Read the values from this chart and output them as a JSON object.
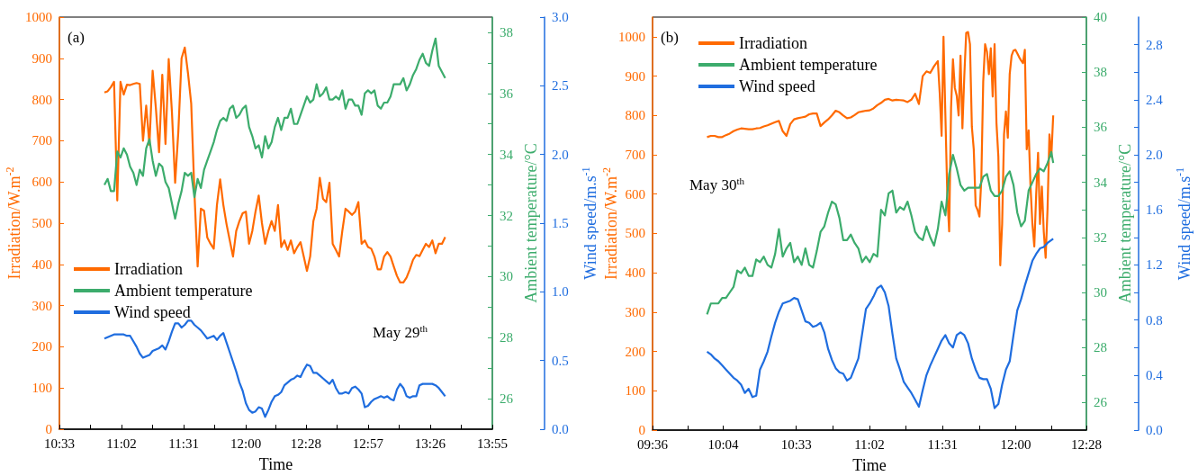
{
  "chart_data": [
    {
      "type": "line",
      "xlabel": "Time",
      "ylabel": "Irradiation/W.m$^{-2}$",
      "y2label": "Ambient temperature/°C",
      "y3label": "Wind speed/m.s$^{-1}$",
      "legend": "left",
      "marker": "none",
      "line_style": "solid",
      "annotations": [
        "(a)",
        "May 29$^{th}$"
      ],
      "xlim": [
        10.55,
        13.9167
      ],
      "xticks": [
        {
          "value": 10.55,
          "label": "10:33"
        },
        {
          "value": 10.7917,
          "label": null
        },
        {
          "value": 11.0333,
          "label": "11:02"
        },
        {
          "value": 11.275,
          "label": null
        },
        {
          "value": 11.5167,
          "label": "11:31"
        },
        {
          "value": 11.7583,
          "label": null
        },
        {
          "value": 12,
          "label": "12:00"
        },
        {
          "value": 12.2333,
          "label": null
        },
        {
          "value": 12.4667,
          "label": "12:28"
        },
        {
          "value": 12.7083,
          "label": null
        },
        {
          "value": 12.95,
          "label": "12:57"
        },
        {
          "value": 13.1917,
          "label": null
        },
        {
          "value": 13.4333,
          "label": "13:26"
        },
        {
          "value": 13.675,
          "label": null
        },
        {
          "value": 13.9167,
          "label": "13:55"
        }
      ],
      "ylim": [
        0,
        1000
      ],
      "yticks": [
        0,
        100,
        200,
        300,
        400,
        500,
        600,
        700,
        800,
        900,
        1000
      ],
      "y2lim": [
        25,
        38.5
      ],
      "y2ticks": [
        26,
        {
          "value": 27,
          "label": null
        },
        28,
        {
          "value": 29,
          "label": null
        },
        30,
        {
          "value": 31,
          "label": null
        },
        32,
        {
          "value": 33,
          "label": null
        },
        34,
        {
          "value": 35,
          "label": null
        },
        36,
        {
          "value": 37,
          "label": null
        },
        38
      ],
      "y3lim": [
        0,
        3
      ],
      "y3ticks": [
        {
          "value": 0,
          "label": "0.0"
        },
        0.5,
        {
          "value": 1,
          "label": "1.0"
        },
        1.5,
        {
          "value": 2,
          "label": "2.0"
        },
        2.5,
        {
          "value": 3,
          "label": "3.0"
        }
      ],
      "x": [
        10.9,
        10.925,
        10.95,
        10.975,
        11,
        11.025,
        11.05,
        11.075,
        11.1,
        11.125,
        11.15,
        11.175,
        11.2,
        11.225,
        11.25,
        11.275,
        11.3,
        11.325,
        11.35,
        11.375,
        11.4,
        11.425,
        11.45,
        11.475,
        11.5,
        11.525,
        11.55,
        11.575,
        11.6,
        11.625,
        11.65,
        11.675,
        11.7,
        11.725,
        11.75,
        11.775,
        11.8,
        11.825,
        11.85,
        11.875,
        11.9,
        11.925,
        11.95,
        11.975,
        12,
        12.025,
        12.05,
        12.075,
        12.1,
        12.125,
        12.15,
        12.175,
        12.2,
        12.225,
        12.25,
        12.275,
        12.3,
        12.325,
        12.35,
        12.375,
        12.4,
        12.425,
        12.45,
        12.475,
        12.5,
        12.525,
        12.55,
        12.575,
        12.6,
        12.625,
        12.65,
        12.675,
        12.7,
        12.725,
        12.75,
        12.775,
        12.8,
        12.825,
        12.85,
        12.875,
        12.9,
        12.925,
        12.95,
        12.975,
        13,
        13.025,
        13.05,
        13.075,
        13.1,
        13.125,
        13.15,
        13.175,
        13.2,
        13.225,
        13.25,
        13.275,
        13.3,
        13.325,
        13.35,
        13.375,
        13.4,
        13.425,
        13.45,
        13.475,
        13.5,
        13.525,
        13.55
      ],
      "series": [
        {
          "name": "Irradiation",
          "color": "#ff6a00",
          "values": [
            817,
            820,
            830,
            843,
            555,
            843,
            812,
            836,
            835,
            838,
            840,
            838,
            700,
            785,
            690,
            870,
            780,
            672,
            860,
            692,
            898,
            770,
            598,
            723,
            900,
            926,
            864,
            790,
            574,
            395,
            535,
            530,
            465,
            450,
            438,
            544,
            606,
            544,
            497,
            458,
            419,
            481,
            505,
            524,
            528,
            450,
            481,
            528,
            567,
            500,
            450,
            481,
            505,
            481,
            544,
            442,
            458,
            435,
            458,
            427,
            442,
            454,
            419,
            384,
            419,
            505,
            535,
            610,
            559,
            551,
            598,
            450,
            435,
            419,
            481,
            535,
            528,
            520,
            528,
            551,
            450,
            458,
            442,
            438,
            419,
            388,
            388,
            419,
            430,
            419,
            395,
            372,
            356,
            356,
            368,
            388,
            411,
            423,
            420,
            435,
            450,
            442,
            458,
            427,
            450,
            450,
            466
          ]
        },
        {
          "name": "Ambient temperature",
          "color": "#3cac6c",
          "axis": "y2",
          "values": [
            33.0,
            33.2,
            32.8,
            32.8,
            34.1,
            33.9,
            34.2,
            34.0,
            33.6,
            33.4,
            33.0,
            33.5,
            33.3,
            34.2,
            34.5,
            33.8,
            33.3,
            33.7,
            33.6,
            33.1,
            32.9,
            32.4,
            31.9,
            32.4,
            32.8,
            33.4,
            33.3,
            33.4,
            32.6,
            33.2,
            32.9,
            33.5,
            33.8,
            34.1,
            34.4,
            34.8,
            35.1,
            35.2,
            35.1,
            35.5,
            35.6,
            35.2,
            35.3,
            35.5,
            35.6,
            34.9,
            34.6,
            34.2,
            34.3,
            33.9,
            34.6,
            34.2,
            34.4,
            34.9,
            35.2,
            34.8,
            35.2,
            35.2,
            35.5,
            35.0,
            35.0,
            35.3,
            35.6,
            35.9,
            35.7,
            35.8,
            36.3,
            35.9,
            36.0,
            36.2,
            35.8,
            35.8,
            35.9,
            35.8,
            36.1,
            35.5,
            35.8,
            35.8,
            35.6,
            35.6,
            35.3,
            36.0,
            36.1,
            36.0,
            36.1,
            35.6,
            35.5,
            35.7,
            35.7,
            35.9,
            36.3,
            36.3,
            36.3,
            36.5,
            36.1,
            36.3,
            36.6,
            36.8,
            37.1,
            37.3,
            37.0,
            36.9,
            37.4,
            37.8,
            36.9,
            36.7,
            36.5
          ]
        },
        {
          "name": "Wind speed",
          "color": "#1f6ddf",
          "axis": "y3",
          "values": [
            0.66,
            0.67,
            0.68,
            0.69,
            0.69,
            0.69,
            0.69,
            0.68,
            0.68,
            0.64,
            0.6,
            0.55,
            0.52,
            0.53,
            0.54,
            0.57,
            0.58,
            0.59,
            0.61,
            0.58,
            0.64,
            0.71,
            0.77,
            0.77,
            0.74,
            0.76,
            0.79,
            0.79,
            0.76,
            0.74,
            0.72,
            0.69,
            0.66,
            0.67,
            0.68,
            0.65,
            0.68,
            0.7,
            0.63,
            0.56,
            0.49,
            0.42,
            0.34,
            0.28,
            0.19,
            0.14,
            0.12,
            0.13,
            0.16,
            0.15,
            0.09,
            0.14,
            0.2,
            0.24,
            0.25,
            0.27,
            0.32,
            0.34,
            0.36,
            0.37,
            0.39,
            0.38,
            0.43,
            0.47,
            0.46,
            0.41,
            0.41,
            0.39,
            0.37,
            0.35,
            0.33,
            0.36,
            0.3,
            0.26,
            0.26,
            0.27,
            0.26,
            0.3,
            0.31,
            0.29,
            0.26,
            0.16,
            0.17,
            0.2,
            0.22,
            0.23,
            0.24,
            0.23,
            0.24,
            0.22,
            0.21,
            0.29,
            0.33,
            0.3,
            0.24,
            0.23,
            0.24,
            0.24,
            0.32,
            0.33,
            0.33,
            0.33,
            0.33,
            0.32,
            0.3,
            0.27,
            0.24
          ]
        }
      ]
    },
    {
      "type": "line",
      "xlabel": "Time",
      "ylabel": "Irradiation/W.m$^{-2}$",
      "y2label": "Ambient temperature/°C",
      "y3label": "Wind speed/m.s$^{-1}$",
      "legend": "top left",
      "marker": "none",
      "line_style": "solid",
      "annotations": [
        "(b)",
        "May 30$^{th}$"
      ],
      "xlim": [
        9.6,
        12.4667
      ],
      "xticks": [
        {
          "value": 9.6,
          "label": "09:36"
        },
        {
          "value": 9.8333,
          "label": null
        },
        {
          "value": 10.0667,
          "label": "10:04"
        },
        {
          "value": 10.3083,
          "label": null
        },
        {
          "value": 10.55,
          "label": "10:33"
        },
        {
          "value": 10.7917,
          "label": null
        },
        {
          "value": 11.0333,
          "label": "11:02"
        },
        {
          "value": 11.275,
          "label": null
        },
        {
          "value": 11.5167,
          "label": "11:31"
        },
        {
          "value": 11.7583,
          "label": null
        },
        {
          "value": 12,
          "label": "12:00"
        },
        {
          "value": 12.2333,
          "label": null
        },
        {
          "value": 12.4667,
          "label": "12:28"
        }
      ],
      "ylim": [
        0,
        1050
      ],
      "yticks": [
        0,
        100,
        200,
        300,
        400,
        500,
        600,
        700,
        800,
        900,
        1000
      ],
      "y2lim": [
        25,
        40
      ],
      "y2ticks": [
        26,
        {
          "value": 27,
          "label": null
        },
        28,
        {
          "value": 29,
          "label": null
        },
        30,
        {
          "value": 31,
          "label": null
        },
        32,
        {
          "value": 33,
          "label": null
        },
        34,
        {
          "value": 35,
          "label": null
        },
        36,
        {
          "value": 37,
          "label": null
        },
        38,
        {
          "value": 39,
          "label": null
        },
        40
      ],
      "y3lim": [
        0,
        3
      ],
      "y3ticks": [
        {
          "value": 0,
          "label": "0.0"
        },
        {
          "value": 0.2,
          "label": null
        },
        0.4,
        {
          "value": 0.6,
          "label": null
        },
        0.8,
        {
          "value": 1,
          "label": null
        },
        1.2,
        {
          "value": 1.4,
          "label": null
        },
        1.6,
        {
          "value": 1.8,
          "label": null
        },
        {
          "value": 2,
          "label": "2.0"
        },
        {
          "value": 2.2,
          "label": null
        },
        2.4,
        {
          "value": 2.6,
          "label": null
        },
        2.8
      ],
      "x": [
        9.96,
        9.985,
        10.01,
        10.035,
        10.06,
        10.085,
        10.11,
        10.135,
        10.16,
        10.185,
        10.21,
        10.235,
        10.26,
        10.285,
        10.31,
        10.335,
        10.36,
        10.385,
        10.41,
        10.435,
        10.46,
        10.485,
        10.51,
        10.535,
        10.56,
        10.585,
        10.61,
        10.635,
        10.66,
        10.685,
        10.71,
        10.735,
        10.76,
        10.785,
        10.81,
        10.835,
        10.86,
        10.885,
        10.91,
        10.935,
        10.96,
        10.985,
        11.01,
        11.035,
        11.06,
        11.085,
        11.11,
        11.135,
        11.16,
        11.185,
        11.21,
        11.235,
        11.26,
        11.285,
        11.31,
        11.335,
        11.36,
        11.385,
        11.41,
        11.435,
        11.46,
        11.485,
        11.51,
        11.535,
        11.56,
        11.585,
        11.61,
        11.635,
        11.66,
        11.685,
        11.71,
        11.735,
        11.76,
        11.785,
        11.81,
        11.835,
        11.86,
        11.885,
        11.91,
        11.935,
        11.96,
        11.985,
        12.01,
        12.035,
        12.06,
        12.085,
        12.11,
        12.135,
        12.16,
        12.185,
        12.21,
        12.235,
        12.2475
      ],
      "series": [
        {
          "name": "Irradiation",
          "color": "#ff6a00",
          "x": [
            9.96,
            9.985,
            10.01,
            10.035,
            10.06,
            10.085,
            10.11,
            10.135,
            10.16,
            10.185,
            10.21,
            10.235,
            10.26,
            10.285,
            10.31,
            10.335,
            10.36,
            10.385,
            10.41,
            10.435,
            10.46,
            10.485,
            10.51,
            10.535,
            10.56,
            10.585,
            10.61,
            10.635,
            10.66,
            10.685,
            10.71,
            10.735,
            10.76,
            10.785,
            10.81,
            10.835,
            10.86,
            10.885,
            10.91,
            10.935,
            10.96,
            10.985,
            11.01,
            11.035,
            11.06,
            11.085,
            11.11,
            11.135,
            11.16,
            11.185,
            11.21,
            11.235,
            11.26,
            11.285,
            11.31,
            11.335,
            11.36,
            11.385,
            11.41,
            11.435,
            11.46,
            11.485,
            11.4975,
            11.51,
            11.5225,
            11.535,
            11.5475,
            11.56,
            11.5725,
            11.585,
            11.5975,
            11.61,
            11.6225,
            11.635,
            11.6475,
            11.66,
            11.6725,
            11.685,
            11.6975,
            11.71,
            11.7225,
            11.735,
            11.7475,
            11.76,
            11.7725,
            11.785,
            11.7975,
            11.81,
            11.8225,
            11.835,
            11.8475,
            11.86,
            11.8725,
            11.885,
            11.8975,
            11.91,
            11.9225,
            11.935,
            11.9475,
            11.96,
            11.9725,
            11.985,
            11.9975,
            12.01,
            12.0225,
            12.035,
            12.0475,
            12.06,
            12.0725,
            12.085,
            12.0975,
            12.11,
            12.1225,
            12.135,
            12.1475,
            12.16,
            12.1725,
            12.185,
            12.1975,
            12.21,
            12.2225,
            12.235,
            12.2475
          ],
          "values": [
            745,
            748,
            748,
            745,
            745,
            750,
            754,
            760,
            764,
            767,
            766,
            765,
            765,
            767,
            768,
            772,
            775,
            779,
            783,
            786,
            760,
            748,
            778,
            790,
            793,
            795,
            797,
            803,
            805,
            805,
            773,
            782,
            790,
            800,
            812,
            808,
            800,
            793,
            795,
            801,
            808,
            810,
            812,
            813,
            818,
            826,
            832,
            840,
            842,
            838,
            840,
            839,
            838,
            834,
            840,
            855,
            829,
            900,
            912,
            908,
            925,
            938,
            857,
            748,
            1000,
            800,
            600,
            505,
            820,
            943,
            870,
            850,
            800,
            952,
            767,
            900,
            1010,
            1012,
            981,
            771,
            714,
            571,
            560,
            543,
            638,
            886,
            981,
            962,
            905,
            971,
            848,
            981,
            781,
            695,
            419,
            524,
            752,
            810,
            743,
            905,
            952,
            965,
            967,
            958,
            948,
            940,
            933,
            967,
            714,
            762,
            619,
            524,
            467,
            600,
            705,
            524,
            619,
            505,
            438,
            562,
            752,
            695,
            800
          ]
        },
        {
          "name": "Ambient temperature",
          "color": "#3cac6c",
          "axis": "y2",
          "values": [
            29.2,
            29.6,
            29.6,
            29.6,
            29.8,
            29.8,
            30.0,
            30.2,
            30.8,
            30.7,
            30.9,
            30.6,
            30.6,
            31.2,
            31.1,
            31.3,
            31.0,
            30.9,
            31.4,
            32.3,
            31.3,
            31.6,
            31.8,
            31.1,
            31.3,
            31.0,
            31.6,
            31.0,
            30.9,
            31.5,
            32.2,
            32.4,
            32.9,
            33.3,
            33.2,
            32.7,
            31.9,
            31.9,
            32.1,
            31.8,
            31.6,
            31.1,
            31.3,
            31.1,
            31.4,
            31.3,
            33.0,
            32.8,
            33.6,
            33.7,
            32.9,
            33.1,
            33.0,
            33.3,
            32.8,
            32.2,
            32.0,
            31.9,
            32.4,
            32.0,
            31.7,
            32.3,
            33.3,
            32.8,
            34.3,
            35.0,
            34.5,
            33.9,
            33.7,
            33.8,
            33.8,
            33.8,
            33.8,
            34.2,
            34.3,
            33.7,
            33.5,
            33.5,
            33.7,
            34.2,
            34.4,
            33.9,
            32.9,
            32.4,
            32.6,
            33.7,
            34.0,
            34.3,
            34.5,
            34.4,
            34.7,
            35.1,
            34.7
          ]
        },
        {
          "name": "Wind speed",
          "color": "#1f6ddf",
          "axis": "y3",
          "values": [
            0.57,
            0.55,
            0.52,
            0.5,
            0.47,
            0.44,
            0.41,
            0.38,
            0.36,
            0.33,
            0.27,
            0.3,
            0.24,
            0.25,
            0.44,
            0.5,
            0.57,
            0.68,
            0.78,
            0.86,
            0.92,
            0.93,
            0.94,
            0.96,
            0.95,
            0.87,
            0.79,
            0.78,
            0.75,
            0.76,
            0.78,
            0.71,
            0.59,
            0.51,
            0.45,
            0.42,
            0.41,
            0.36,
            0.38,
            0.45,
            0.52,
            0.7,
            0.88,
            0.92,
            0.97,
            1.03,
            1.05,
            1.0,
            0.9,
            0.7,
            0.52,
            0.44,
            0.35,
            0.31,
            0.27,
            0.22,
            0.17,
            0.29,
            0.4,
            0.47,
            0.53,
            0.59,
            0.65,
            0.69,
            0.63,
            0.6,
            0.69,
            0.71,
            0.69,
            0.63,
            0.52,
            0.44,
            0.38,
            0.37,
            0.37,
            0.3,
            0.16,
            0.19,
            0.33,
            0.44,
            0.5,
            0.69,
            0.87,
            0.95,
            1.05,
            1.14,
            1.23,
            1.28,
            1.32,
            1.33,
            1.36,
            1.38,
            1.39
          ]
        }
      ]
    }
  ]
}
